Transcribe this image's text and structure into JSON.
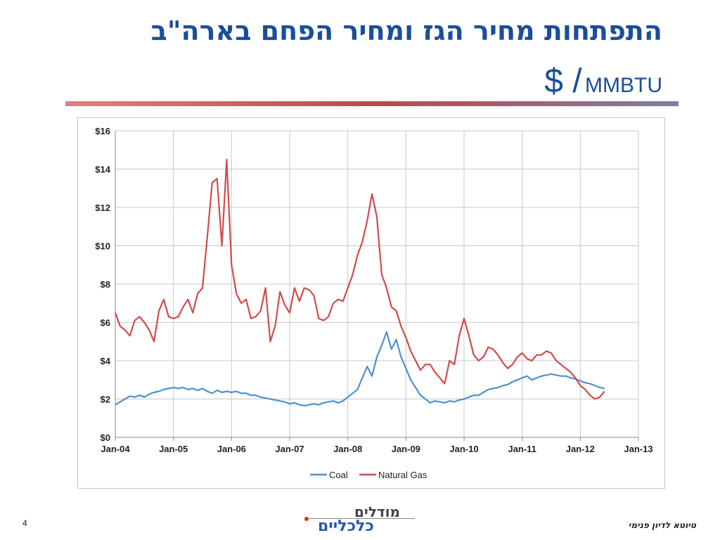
{
  "slide": {
    "title": "התפתחות מחיר הגז ומחיר הפחם בארה\"ב",
    "subtitle_unit_big": "$ /",
    "subtitle_unit_small": "MMBTU",
    "page_number": "4",
    "footer_text": "טיוטא לדיון פנימי",
    "logo_line1": "מודלים",
    "logo_line2": "כלכליים",
    "colors": {
      "title": "#1a4e9a",
      "coal": "#4f8fcf",
      "gas": "#d24b4b"
    }
  },
  "chart_data": {
    "type": "line",
    "title": "",
    "xlabel": "",
    "ylabel": "",
    "x_ticks": [
      "Jan-04",
      "Jan-05",
      "Jan-06",
      "Jan-07",
      "Jan-08",
      "Jan-09",
      "Jan-10",
      "Jan-11",
      "Jan-12",
      "Jan-13"
    ],
    "y_ticks": [
      "$0",
      "$2",
      "$4",
      "$6",
      "$8",
      "$10",
      "$12",
      "$14",
      "$16"
    ],
    "ylim": [
      0,
      16
    ],
    "xlim": [
      "2004-01",
      "2013-01"
    ],
    "grid": true,
    "legend_position": "bottom",
    "series": [
      {
        "name": "Coal",
        "color": "#4f8fcf",
        "points": [
          [
            "2004-01",
            1.7
          ],
          [
            "2004-02",
            1.85
          ],
          [
            "2004-03",
            2.0
          ],
          [
            "2004-04",
            2.15
          ],
          [
            "2004-05",
            2.1
          ],
          [
            "2004-06",
            2.2
          ],
          [
            "2004-07",
            2.1
          ],
          [
            "2004-08",
            2.25
          ],
          [
            "2004-09",
            2.35
          ],
          [
            "2004-10",
            2.4
          ],
          [
            "2004-11",
            2.5
          ],
          [
            "2004-12",
            2.55
          ],
          [
            "2005-01",
            2.6
          ],
          [
            "2005-02",
            2.55
          ],
          [
            "2005-03",
            2.6
          ],
          [
            "2005-04",
            2.5
          ],
          [
            "2005-05",
            2.55
          ],
          [
            "2005-06",
            2.45
          ],
          [
            "2005-07",
            2.55
          ],
          [
            "2005-08",
            2.4
          ],
          [
            "2005-09",
            2.3
          ],
          [
            "2005-10",
            2.45
          ],
          [
            "2005-11",
            2.35
          ],
          [
            "2005-12",
            2.4
          ],
          [
            "2006-01",
            2.35
          ],
          [
            "2006-02",
            2.4
          ],
          [
            "2006-03",
            2.3
          ],
          [
            "2006-04",
            2.3
          ],
          [
            "2006-05",
            2.2
          ],
          [
            "2006-06",
            2.2
          ],
          [
            "2006-07",
            2.1
          ],
          [
            "2006-08",
            2.05
          ],
          [
            "2006-09",
            2.0
          ],
          [
            "2006-10",
            1.95
          ],
          [
            "2006-11",
            1.9
          ],
          [
            "2006-12",
            1.85
          ],
          [
            "2007-01",
            1.75
          ],
          [
            "2007-02",
            1.8
          ],
          [
            "2007-03",
            1.7
          ],
          [
            "2007-04",
            1.65
          ],
          [
            "2007-05",
            1.7
          ],
          [
            "2007-06",
            1.75
          ],
          [
            "2007-07",
            1.7
          ],
          [
            "2007-08",
            1.8
          ],
          [
            "2007-09",
            1.85
          ],
          [
            "2007-10",
            1.9
          ],
          [
            "2007-11",
            1.8
          ],
          [
            "2007-12",
            1.9
          ],
          [
            "2008-01",
            2.1
          ],
          [
            "2008-02",
            2.3
          ],
          [
            "2008-03",
            2.5
          ],
          [
            "2008-04",
            3.1
          ],
          [
            "2008-05",
            3.7
          ],
          [
            "2008-06",
            3.2
          ],
          [
            "2008-07",
            4.2
          ],
          [
            "2008-08",
            4.8
          ],
          [
            "2008-09",
            5.5
          ],
          [
            "2008-10",
            4.6
          ],
          [
            "2008-11",
            5.1
          ],
          [
            "2008-12",
            4.2
          ],
          [
            "2009-01",
            3.6
          ],
          [
            "2009-02",
            3.0
          ],
          [
            "2009-03",
            2.6
          ],
          [
            "2009-04",
            2.2
          ],
          [
            "2009-05",
            2.0
          ],
          [
            "2009-06",
            1.8
          ],
          [
            "2009-07",
            1.9
          ],
          [
            "2009-08",
            1.85
          ],
          [
            "2009-09",
            1.8
          ],
          [
            "2009-10",
            1.9
          ],
          [
            "2009-11",
            1.85
          ],
          [
            "2009-12",
            1.95
          ],
          [
            "2010-01",
            2.0
          ],
          [
            "2010-02",
            2.1
          ],
          [
            "2010-03",
            2.2
          ],
          [
            "2010-04",
            2.2
          ],
          [
            "2010-05",
            2.35
          ],
          [
            "2010-06",
            2.5
          ],
          [
            "2010-07",
            2.55
          ],
          [
            "2010-08",
            2.6
          ],
          [
            "2010-09",
            2.7
          ],
          [
            "2010-10",
            2.75
          ],
          [
            "2010-11",
            2.9
          ],
          [
            "2010-12",
            3.0
          ],
          [
            "2011-01",
            3.1
          ],
          [
            "2011-02",
            3.2
          ],
          [
            "2011-03",
            3.0
          ],
          [
            "2011-04",
            3.1
          ],
          [
            "2011-05",
            3.2
          ],
          [
            "2011-06",
            3.25
          ],
          [
            "2011-07",
            3.3
          ],
          [
            "2011-08",
            3.25
          ],
          [
            "2011-09",
            3.2
          ],
          [
            "2011-10",
            3.2
          ],
          [
            "2011-11",
            3.1
          ],
          [
            "2011-12",
            3.05
          ],
          [
            "2012-01",
            2.95
          ],
          [
            "2012-02",
            2.85
          ],
          [
            "2012-03",
            2.8
          ],
          [
            "2012-04",
            2.7
          ],
          [
            "2012-05",
            2.6
          ],
          [
            "2012-06",
            2.55
          ]
        ]
      },
      {
        "name": "Natural Gas",
        "color": "#d24b4b",
        "points": [
          [
            "2004-01",
            6.5
          ],
          [
            "2004-02",
            5.8
          ],
          [
            "2004-03",
            5.6
          ],
          [
            "2004-04",
            5.3
          ],
          [
            "2004-05",
            6.1
          ],
          [
            "2004-06",
            6.3
          ],
          [
            "2004-07",
            6.0
          ],
          [
            "2004-08",
            5.6
          ],
          [
            "2004-09",
            5.0
          ],
          [
            "2004-10",
            6.6
          ],
          [
            "2004-11",
            7.2
          ],
          [
            "2004-12",
            6.3
          ],
          [
            "2005-01",
            6.2
          ],
          [
            "2005-02",
            6.3
          ],
          [
            "2005-03",
            6.8
          ],
          [
            "2005-04",
            7.2
          ],
          [
            "2005-05",
            6.5
          ],
          [
            "2005-06",
            7.5
          ],
          [
            "2005-07",
            7.8
          ],
          [
            "2005-08",
            10.5
          ],
          [
            "2005-09",
            13.3
          ],
          [
            "2005-10",
            13.5
          ],
          [
            "2005-11",
            10.0
          ],
          [
            "2005-12",
            14.5
          ],
          [
            "2006-01",
            9.0
          ],
          [
            "2006-02",
            7.5
          ],
          [
            "2006-03",
            7.0
          ],
          [
            "2006-04",
            7.2
          ],
          [
            "2006-05",
            6.2
          ],
          [
            "2006-06",
            6.3
          ],
          [
            "2006-07",
            6.6
          ],
          [
            "2006-08",
            7.8
          ],
          [
            "2006-09",
            5.0
          ],
          [
            "2006-10",
            5.8
          ],
          [
            "2006-11",
            7.6
          ],
          [
            "2006-12",
            6.9
          ],
          [
            "2007-01",
            6.5
          ],
          [
            "2007-02",
            7.8
          ],
          [
            "2007-03",
            7.1
          ],
          [
            "2007-04",
            7.8
          ],
          [
            "2007-05",
            7.7
          ],
          [
            "2007-06",
            7.4
          ],
          [
            "2007-07",
            6.2
          ],
          [
            "2007-08",
            6.1
          ],
          [
            "2007-09",
            6.3
          ],
          [
            "2007-10",
            7.0
          ],
          [
            "2007-11",
            7.2
          ],
          [
            "2007-12",
            7.1
          ],
          [
            "2008-01",
            7.8
          ],
          [
            "2008-02",
            8.5
          ],
          [
            "2008-03",
            9.5
          ],
          [
            "2008-04",
            10.2
          ],
          [
            "2008-05",
            11.3
          ],
          [
            "2008-06",
            12.7
          ],
          [
            "2008-07",
            11.5
          ],
          [
            "2008-08",
            8.5
          ],
          [
            "2008-09",
            7.8
          ],
          [
            "2008-10",
            6.8
          ],
          [
            "2008-11",
            6.6
          ],
          [
            "2008-12",
            5.8
          ],
          [
            "2009-01",
            5.2
          ],
          [
            "2009-02",
            4.5
          ],
          [
            "2009-03",
            4.0
          ],
          [
            "2009-04",
            3.5
          ],
          [
            "2009-05",
            3.8
          ],
          [
            "2009-06",
            3.8
          ],
          [
            "2009-07",
            3.4
          ],
          [
            "2009-08",
            3.1
          ],
          [
            "2009-09",
            2.8
          ],
          [
            "2009-10",
            4.0
          ],
          [
            "2009-11",
            3.8
          ],
          [
            "2009-12",
            5.3
          ],
          [
            "2010-01",
            6.2
          ],
          [
            "2010-02",
            5.3
          ],
          [
            "2010-03",
            4.3
          ],
          [
            "2010-04",
            4.0
          ],
          [
            "2010-05",
            4.2
          ],
          [
            "2010-06",
            4.7
          ],
          [
            "2010-07",
            4.6
          ],
          [
            "2010-08",
            4.3
          ],
          [
            "2010-09",
            3.9
          ],
          [
            "2010-10",
            3.6
          ],
          [
            "2010-11",
            3.8
          ],
          [
            "2010-12",
            4.2
          ],
          [
            "2011-01",
            4.4
          ],
          [
            "2011-02",
            4.1
          ],
          [
            "2011-03",
            4.0
          ],
          [
            "2011-04",
            4.3
          ],
          [
            "2011-05",
            4.3
          ],
          [
            "2011-06",
            4.5
          ],
          [
            "2011-07",
            4.4
          ],
          [
            "2011-08",
            4.0
          ],
          [
            "2011-09",
            3.8
          ],
          [
            "2011-10",
            3.6
          ],
          [
            "2011-11",
            3.4
          ],
          [
            "2011-12",
            3.1
          ],
          [
            "2012-01",
            2.7
          ],
          [
            "2012-02",
            2.5
          ],
          [
            "2012-03",
            2.2
          ],
          [
            "2012-04",
            2.0
          ],
          [
            "2012-05",
            2.1
          ],
          [
            "2012-06",
            2.4
          ]
        ]
      }
    ]
  }
}
